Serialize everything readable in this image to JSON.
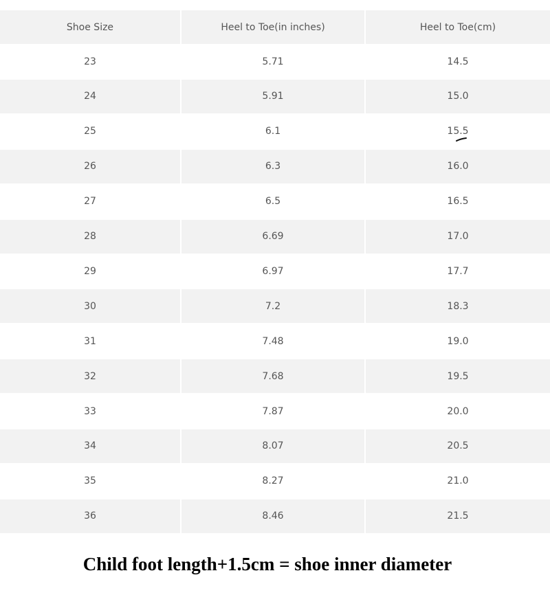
{
  "table": {
    "header": [
      "Shoe Size",
      "Heel to Toe(in inches)",
      "Heel to Toe(cm)"
    ],
    "rows": [
      [
        "23",
        "5.71",
        "14.5"
      ],
      [
        "24",
        "5.91",
        "15.0"
      ],
      [
        "25",
        "6.1",
        "15.5"
      ],
      [
        "26",
        "6.3",
        "16.0"
      ],
      [
        "27",
        "6.5",
        "16.5"
      ],
      [
        "28",
        "6.69",
        "17.0"
      ],
      [
        "29",
        "6.97",
        "17.7"
      ],
      [
        "30",
        "7.2",
        "18.3"
      ],
      [
        "31",
        "7.48",
        "19.0"
      ],
      [
        "32",
        "7.68",
        "19.5"
      ],
      [
        "33",
        "7.87",
        "20.0"
      ],
      [
        "34",
        "8.07",
        "20.5"
      ],
      [
        "35",
        "8.27",
        "21.0"
      ],
      [
        "36",
        "8.46",
        "21.5"
      ]
    ]
  },
  "caption": "Child foot length+1.5cm = shoe inner diameter"
}
